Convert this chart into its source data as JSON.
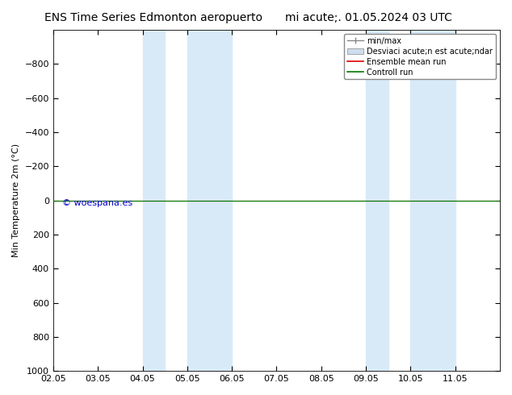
{
  "title_left": "ENS Time Series Edmonton aeropuerto",
  "title_right": "mi acute;. 01.05.2024 03 UTC",
  "ylabel": "Min Temperature 2m (°C)",
  "ylim_top": -1000,
  "ylim_bottom": 1000,
  "yticks": [
    -800,
    -600,
    -400,
    -200,
    0,
    200,
    400,
    600,
    800,
    1000
  ],
  "xlim_start": 0,
  "xlim_end": 10,
  "xtick_labels": [
    "02.05",
    "03.05",
    "04.05",
    "05.05",
    "06.05",
    "07.05",
    "08.05",
    "09.05",
    "10.05",
    "11.05"
  ],
  "blue_shade_regions": [
    [
      2,
      2.5
    ],
    [
      3,
      4
    ],
    [
      7,
      7.5
    ],
    [
      8,
      9
    ]
  ],
  "shade_color": "#d8eaf8",
  "control_run_y": 0,
  "ensemble_mean_y": 0,
  "watermark": "© woespana.es",
  "watermark_color": "#0000cc",
  "bg_color": "#ffffff",
  "plot_bg_color": "#ffffff",
  "legend_labels": [
    "min/max",
    "Desviaci acute;n est acute;ndar",
    "Ensemble mean run",
    "Controll run"
  ],
  "legend_line_color": "#888888",
  "legend_shade_color": "#ccddee",
  "ensemble_color": "#dd0000",
  "control_color": "#007700",
  "title_fontsize": 10,
  "axis_fontsize": 8,
  "tick_fontsize": 8
}
